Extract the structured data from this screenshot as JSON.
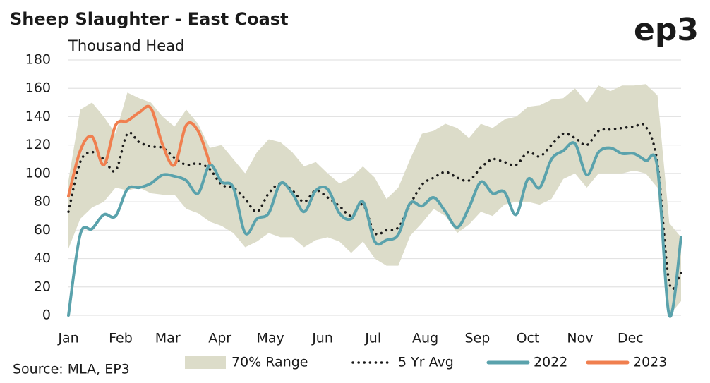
{
  "chart_data": {
    "type": "line",
    "title": "Sheep Slaughter - East Coast",
    "y_label": "Thousand Head",
    "source": "Source: MLA, EP3",
    "logo": "ep3",
    "x": [
      1,
      2,
      3,
      4,
      5,
      6,
      7,
      8,
      9,
      10,
      11,
      12,
      13,
      14,
      15,
      16,
      17,
      18,
      19,
      20,
      21,
      22,
      23,
      24,
      25,
      26,
      27,
      28,
      29,
      30,
      31,
      32,
      33,
      34,
      35,
      36,
      37,
      38,
      39,
      40,
      41,
      42,
      43,
      44,
      45,
      46,
      47,
      48,
      49,
      50,
      51,
      52,
      53
    ],
    "xlim": [
      1,
      53
    ],
    "xticks": [
      {
        "value": 1,
        "label": "Jan"
      },
      {
        "value": 5.43,
        "label": "Feb"
      },
      {
        "value": 9.43,
        "label": "Mar"
      },
      {
        "value": 13.86,
        "label": "Apr"
      },
      {
        "value": 18.14,
        "label": "May"
      },
      {
        "value": 22.57,
        "label": "Jun"
      },
      {
        "value": 26.86,
        "label": "Jul"
      },
      {
        "value": 31.29,
        "label": "Aug"
      },
      {
        "value": 35.71,
        "label": "Sep"
      },
      {
        "value": 40,
        "label": "Oct"
      },
      {
        "value": 44.43,
        "label": "Nov"
      },
      {
        "value": 48.71,
        "label": "Dec"
      }
    ],
    "ylim": [
      0,
      180
    ],
    "yticks": [
      0,
      20,
      40,
      60,
      80,
      100,
      120,
      140,
      160,
      180
    ],
    "grid": true,
    "legend": "bottom",
    "series": [
      {
        "name": "70% Range",
        "kind": "band",
        "color": "#dcdcc9",
        "upper": [
          95,
          145,
          150,
          140,
          128,
          157,
          153,
          150,
          140,
          133,
          145,
          135,
          118,
          120,
          110,
          100,
          115,
          124,
          122,
          115,
          105,
          108,
          100,
          93,
          97,
          105,
          97,
          82,
          90,
          110,
          128,
          130,
          135,
          132,
          125,
          135,
          132,
          138,
          140,
          147,
          148,
          152,
          153,
          160,
          150,
          162,
          158,
          162,
          162,
          163,
          155,
          65,
          55
        ],
        "lower": [
          47,
          68,
          76,
          80,
          90,
          88,
          90,
          86,
          85,
          85,
          75,
          72,
          66,
          63,
          58,
          48,
          52,
          58,
          55,
          55,
          48,
          53,
          55,
          52,
          44,
          52,
          40,
          35,
          35,
          56,
          65,
          75,
          70,
          58,
          64,
          73,
          70,
          78,
          80,
          80,
          78,
          82,
          96,
          100,
          90,
          100,
          100,
          100,
          102,
          100,
          90,
          0,
          10
        ]
      },
      {
        "name": "5 Yr Avg",
        "kind": "line",
        "dash": "dotted",
        "color": "#1a1a1a",
        "values": [
          73,
          108,
          115,
          110,
          102,
          128,
          122,
          119,
          118,
          111,
          106,
          107,
          103,
          92,
          90,
          82,
          73,
          86,
          93,
          88,
          80,
          88,
          83,
          77,
          70,
          78,
          58,
          60,
          62,
          78,
          92,
          97,
          101,
          97,
          95,
          104,
          110,
          108,
          106,
          115,
          112,
          120,
          128,
          125,
          120,
          130,
          131,
          132,
          133,
          133,
          107,
          23,
          30
        ]
      },
      {
        "name": "2022",
        "kind": "line",
        "color": "#5aa2ac",
        "values": [
          0,
          57,
          61,
          71,
          70,
          89,
          90,
          93,
          99,
          98,
          95,
          86,
          106,
          94,
          90,
          58,
          68,
          72,
          93,
          86,
          73,
          88,
          89,
          72,
          68,
          80,
          52,
          53,
          57,
          79,
          77,
          83,
          73,
          62,
          76,
          94,
          86,
          87,
          71,
          96,
          90,
          110,
          116,
          121,
          99,
          115,
          118,
          114,
          114,
          109,
          104,
          0,
          55
        ]
      },
      {
        "name": "2023",
        "kind": "line",
        "color": "#f07f4f",
        "values": [
          84,
          116,
          126,
          106,
          134,
          137,
          143,
          146,
          120,
          106,
          134,
          130,
          107,
          null,
          null,
          null,
          null,
          null,
          null,
          null,
          null,
          null,
          null,
          null,
          null,
          null,
          null,
          null,
          null,
          null,
          null,
          null,
          null,
          null,
          null,
          null,
          null,
          null,
          null,
          null,
          null,
          null,
          null,
          null,
          null,
          null,
          null,
          null,
          null,
          null,
          null,
          null,
          null
        ]
      }
    ]
  }
}
